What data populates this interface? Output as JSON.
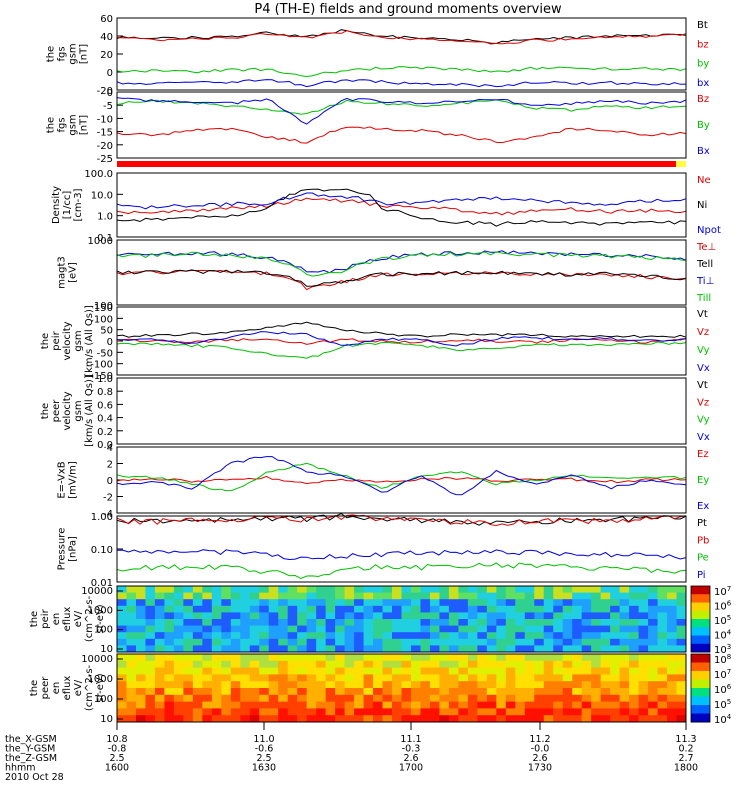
{
  "chart_data": [
    {
      "type": "line",
      "title": "P4 (TH-E) fields and ground moments overview",
      "ylabel": [
        "the",
        "fgs",
        "gsm",
        "[nT]"
      ],
      "yticks": [
        "60",
        "40",
        "20",
        "0",
        "-20"
      ],
      "ylim": [
        -20,
        60
      ],
      "series": [
        {
          "name": "Bt",
          "color": "#000000",
          "values": [
            38,
            37,
            38,
            39,
            44,
            39,
            47,
            40,
            37,
            36,
            33,
            36,
            38,
            40,
            41,
            42
          ]
        },
        {
          "name": "bz",
          "color": "#e00000",
          "values": [
            37,
            36,
            37,
            38,
            42,
            38,
            45,
            39,
            36,
            35,
            32,
            35,
            37,
            39,
            40,
            41
          ]
        },
        {
          "name": "by",
          "color": "#00c000",
          "values": [
            0,
            1,
            0,
            2,
            3,
            -4,
            2,
            4,
            5,
            3,
            0,
            4,
            5,
            3,
            4,
            3
          ]
        },
        {
          "name": "bx",
          "color": "#0000e0",
          "values": [
            -12,
            -13,
            -10,
            -12,
            -8,
            -15,
            -9,
            -11,
            -13,
            -14,
            -16,
            -11,
            -13,
            -12,
            -13,
            -12
          ]
        }
      ]
    },
    {
      "type": "line",
      "ylabel": [
        "the",
        "fgs",
        "gsm",
        "[nT]"
      ],
      "yticks": [
        "0",
        "-5",
        "-10",
        "-15",
        "-20",
        "-25"
      ],
      "ylim": [
        -27,
        2
      ],
      "series": [
        {
          "name": "Bz",
          "color": "#e00000",
          "values": [
            -16,
            -17,
            -15,
            -14,
            -18,
            -20,
            -13,
            -14,
            -15,
            -17,
            -20,
            -18,
            -14,
            -15,
            -17,
            -16
          ]
        },
        {
          "name": "By",
          "color": "#00c000",
          "values": [
            -3,
            -2,
            -3,
            -4,
            -6,
            -8,
            -2,
            -3,
            -4,
            -3,
            -2,
            -5,
            -6,
            -4,
            -5,
            -4
          ]
        },
        {
          "name": "Bx",
          "color": "#0000e0",
          "values": [
            -1,
            -2,
            -2,
            -3,
            -1,
            -12,
            -1,
            -2,
            -3,
            -2,
            -1,
            -4,
            -3,
            -2,
            -3,
            -2
          ]
        }
      ]
    },
    {
      "type": "line",
      "ylabel": [
        "Density",
        "[1/cc]",
        "[cm-3]"
      ],
      "yticks": [
        "100.0",
        "10.0",
        "1.0",
        "0.1"
      ],
      "scale": "log",
      "ylim": [
        0.1,
        100
      ],
      "series": [
        {
          "name": "Ne",
          "color": "#e00000",
          "values": [
            1.5,
            1.4,
            1.8,
            2.2,
            3,
            6,
            5,
            3,
            2.5,
            1.8,
            1.2,
            1.6,
            2,
            1.5,
            1.8,
            1.4
          ]
        },
        {
          "name": "Ni",
          "color": "#000000",
          "values": [
            0.6,
            0.7,
            0.8,
            1,
            2,
            15,
            20,
            2,
            0.8,
            0.5,
            0.4,
            0.6,
            0.5,
            0.4,
            0.5,
            0.5
          ]
        },
        {
          "name": "Npot",
          "color": "#0000e0",
          "values": [
            3,
            2.5,
            3,
            3.5,
            4,
            10,
            8,
            4,
            3.5,
            6,
            7,
            5,
            4,
            3,
            5,
            6
          ]
        }
      ]
    },
    {
      "type": "line",
      "ylabel": [
        "magt3",
        "[eV]"
      ],
      "yticks": [
        "1000",
        "100"
      ],
      "scale": "log",
      "ylim": [
        10,
        10000
      ],
      "series": [
        {
          "name": "Te⊥",
          "color": "#e00000",
          "values": [
            300,
            320,
            350,
            330,
            280,
            60,
            120,
            250,
            280,
            300,
            320,
            280,
            250,
            270,
            200,
            150
          ]
        },
        {
          "name": "Tell",
          "color": "#000000",
          "values": [
            320,
            340,
            360,
            350,
            300,
            70,
            130,
            260,
            290,
            310,
            330,
            290,
            260,
            280,
            210,
            160
          ]
        },
        {
          "name": "Ti⊥",
          "color": "#0000e0",
          "values": [
            2000,
            2200,
            2500,
            2300,
            1500,
            300,
            400,
            1500,
            2200,
            2500,
            2700,
            2400,
            2200,
            2000,
            1800,
            1200
          ]
        },
        {
          "name": "Till",
          "color": "#00c000",
          "values": [
            1800,
            2000,
            2300,
            2100,
            1400,
            250,
            350,
            1300,
            2000,
            2300,
            2500,
            2200,
            2000,
            1800,
            1600,
            1100
          ]
        }
      ]
    },
    {
      "type": "line",
      "ylabel": [
        "the",
        "peir",
        "velocity",
        "gsm",
        "[km/s (All Qs)]"
      ],
      "yticks": [
        "150",
        "100",
        "50",
        "0",
        "-50",
        "-100",
        "-150"
      ],
      "ylim": [
        -150,
        150
      ],
      "series": [
        {
          "name": "Vt",
          "color": "#000000",
          "values": [
            20,
            25,
            30,
            40,
            60,
            80,
            50,
            30,
            20,
            30,
            25,
            30,
            20,
            25,
            20,
            20
          ]
        },
        {
          "name": "Vz",
          "color": "#e00000",
          "values": [
            5,
            0,
            -5,
            5,
            10,
            -10,
            5,
            0,
            -5,
            5,
            0,
            -5,
            5,
            0,
            -5,
            5
          ]
        },
        {
          "name": "Vy",
          "color": "#00c000",
          "values": [
            -10,
            -15,
            -20,
            -30,
            -60,
            -80,
            -20,
            -10,
            -20,
            -40,
            -30,
            -20,
            -15,
            -20,
            -10,
            -10
          ]
        },
        {
          "name": "Vx",
          "color": "#0000e0",
          "values": [
            10,
            5,
            -10,
            20,
            40,
            30,
            -20,
            10,
            5,
            -20,
            10,
            15,
            5,
            10,
            0,
            5
          ]
        }
      ]
    },
    {
      "type": "line",
      "ylabel": [
        "the",
        "peer",
        "velocity",
        "gsm",
        "[km/s (All Qs)]"
      ],
      "yticks": [
        "1.0",
        "0.8",
        "0.6",
        "0.4",
        "0.2",
        "0.0"
      ],
      "ylim": [
        0,
        1
      ],
      "legend": [
        "Vt",
        "Vz",
        "Vy",
        "Vx"
      ],
      "legend_colors": [
        "#000000",
        "#e00000",
        "#00c000",
        "#0000e0"
      ],
      "series": []
    },
    {
      "type": "line",
      "ylabel": [
        "E=-VxB",
        "[mV/m]"
      ],
      "yticks": [
        "4",
        "2",
        "0",
        "-2",
        "-4"
      ],
      "ylim": [
        -4,
        4
      ],
      "series": [
        {
          "name": "Ez",
          "color": "#e00000",
          "values": [
            0,
            0.2,
            -0.2,
            0,
            0.3,
            -0.5,
            0,
            -0.3,
            0.1,
            0.2,
            -0.1,
            0,
            0.1,
            -0.2,
            0,
            0.1
          ]
        },
        {
          "name": "Ey",
          "color": "#00c000",
          "values": [
            0.5,
            0.3,
            -0.5,
            -1.5,
            1,
            2,
            0.5,
            -1,
            0.5,
            1,
            -0.5,
            0,
            0.5,
            0.3,
            0.4,
            0.3
          ]
        },
        {
          "name": "Ex",
          "color": "#0000e0",
          "values": [
            -0.5,
            -0.3,
            -1,
            2,
            3,
            1,
            0.5,
            -1.5,
            0.5,
            -2,
            1,
            -0.5,
            0.5,
            -1,
            0,
            -0.5
          ]
        }
      ]
    },
    {
      "type": "line",
      "ylabel": [
        "Pressure",
        "[nPa]"
      ],
      "yticks": [
        "1.00",
        "0.10",
        "0.01"
      ],
      "scale": "log",
      "ylim": [
        0.01,
        1
      ],
      "series": [
        {
          "name": "Pt",
          "color": "#000000",
          "values": [
            0.75,
            0.72,
            0.74,
            0.78,
            0.9,
            0.85,
            1.0,
            0.85,
            0.72,
            0.7,
            0.62,
            0.7,
            0.75,
            0.8,
            0.85,
            0.88
          ]
        },
        {
          "name": "Pb",
          "color": "#e00000",
          "values": [
            0.72,
            0.7,
            0.72,
            0.75,
            0.85,
            0.8,
            0.95,
            0.8,
            0.7,
            0.68,
            0.6,
            0.68,
            0.72,
            0.77,
            0.82,
            0.85
          ]
        },
        {
          "name": "Pe",
          "color": "#00c000",
          "values": [
            0.025,
            0.028,
            0.03,
            0.028,
            0.02,
            0.015,
            0.025,
            0.03,
            0.028,
            0.03,
            0.035,
            0.03,
            0.028,
            0.026,
            0.024,
            0.02
          ]
        },
        {
          "name": "Pi",
          "color": "#0000e0",
          "values": [
            0.08,
            0.075,
            0.08,
            0.085,
            0.07,
            0.05,
            0.065,
            0.07,
            0.075,
            0.08,
            0.085,
            0.08,
            0.075,
            0.07,
            0.065,
            0.06
          ]
        }
      ]
    },
    {
      "type": "heatmap",
      "ylabel": [
        "the",
        "peir",
        "en",
        "eflux",
        "eV/",
        "(cm^2-s-",
        "sr-eV)"
      ],
      "yticks": [
        "10000",
        "1000",
        "100",
        "10"
      ],
      "scale": "log",
      "colorbar": {
        "min": 3,
        "max": 7,
        "labels": [
          "10^7",
          "10^6",
          "10^5",
          "10^4",
          "10^3"
        ]
      }
    },
    {
      "type": "heatmap",
      "ylabel": [
        "the",
        "peer",
        "en",
        "eflux",
        "eV/",
        "(cm^2-s-",
        "sr-eV)"
      ],
      "yticks": [
        "10000",
        "1000",
        "100",
        "10"
      ],
      "scale": "log",
      "colorbar": {
        "min": 4,
        "max": 8,
        "labels": [
          "10^8",
          "10^7",
          "10^6",
          "10^5",
          "10^4"
        ]
      }
    }
  ],
  "footer": {
    "rows": [
      {
        "label": "the_X-GSM",
        "values": [
          "10.8",
          "11.0",
          "11.1",
          "11.2",
          "11.3"
        ]
      },
      {
        "label": "the_Y-GSM",
        "values": [
          "-0.8",
          "-0.6",
          "-0.3",
          "-0.0",
          "0.2"
        ]
      },
      {
        "label": "the_Z-GSM",
        "values": [
          "2.5",
          "2.5",
          "2.6",
          "2.6",
          "2.7"
        ]
      },
      {
        "label": "hhmm",
        "values": [
          "1600",
          "1630",
          "1700",
          "1730",
          "1800"
        ]
      }
    ],
    "date": "2010 Oct 28"
  }
}
